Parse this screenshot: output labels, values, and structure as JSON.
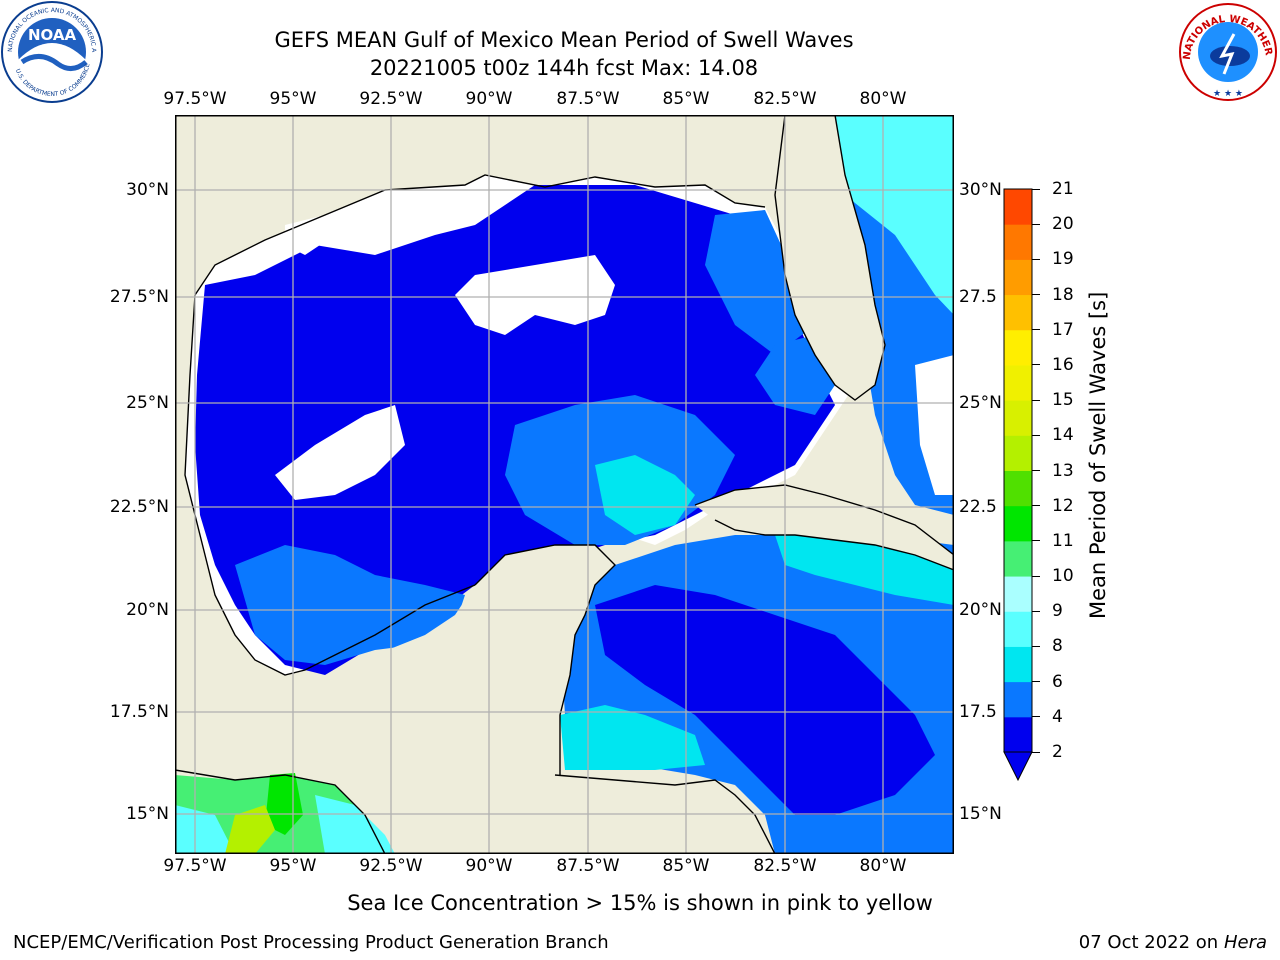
{
  "title": {
    "line1": "GEFS MEAN Gulf of Mexico Mean Period of Swell Waves",
    "line2": "20221005 t00z 144h fcst   Max: 14.08"
  },
  "map": {
    "lon_labels": [
      "97.5°W",
      "95°W",
      "92.5°W",
      "90°W",
      "87.5°W",
      "85°W",
      "82.5°W",
      "80°W"
    ],
    "lat_labels_left": [
      "30°N",
      "27.5°N",
      "25°N",
      "22.5°N",
      "20°N",
      "17.5°N",
      "15°N"
    ],
    "lat_labels_right": [
      "30°N",
      "27.5",
      "25°N",
      "22.5",
      "20°N",
      "17.5",
      "15°N"
    ],
    "colors": {
      "land": "#eeeddb",
      "grid": "#b0b0b0",
      "coast": "#000000",
      "no_data": "#ffffff"
    }
  },
  "colorbar": {
    "label": "Mean Period of Swell Waves [s]",
    "ticks": [
      "2",
      "4",
      "6",
      "8",
      "9",
      "10",
      "11",
      "12",
      "13",
      "14",
      "15",
      "16",
      "17",
      "18",
      "19",
      "20",
      "21"
    ],
    "colors": [
      "#0000ee",
      "#0a78ff",
      "#00e6f0",
      "#5affff",
      "#aaffff",
      "#46ef74",
      "#00e600",
      "#50e000",
      "#b4f000",
      "#d8f000",
      "#f0f000",
      "#ffee00",
      "#ffc000",
      "#ff9c00",
      "#ff7800",
      "#ff4800",
      "#ff0000"
    ],
    "extend_color": "#0000ee"
  },
  "caption": "Sea Ice Concentration > 15% is shown in pink to yellow",
  "footer": {
    "left": "NCEP/EMC/Verification Post Processing Product Generation Branch",
    "right_date": "07 Oct 2022 on ",
    "right_host": "Hera"
  },
  "logos": {
    "noaa_text": "NOAA",
    "noaa_ring_top": "NATIONAL OCEANIC AND ATMOSPHERIC ADMINISTRATION",
    "noaa_ring_bottom": "U.S. DEPARTMENT OF COMMERCE",
    "nws_ring": "NATIONAL WEATHER SERVICE"
  }
}
